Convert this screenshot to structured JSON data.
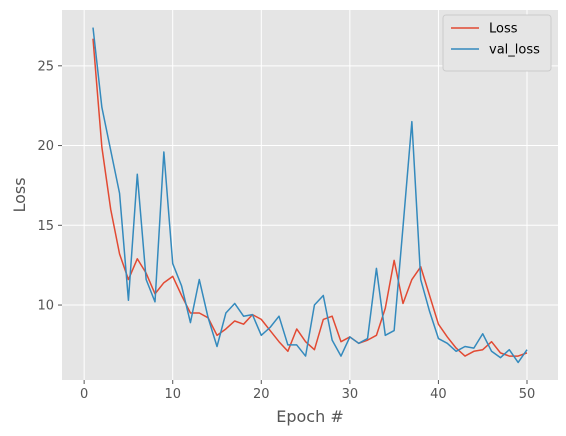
{
  "chart_data": {
    "type": "line",
    "title": "",
    "xlabel": "Epoch #",
    "ylabel": "Loss",
    "xlim": [
      -2.5,
      53.5
    ],
    "ylim": [
      5.3,
      28.5
    ],
    "xticks": [
      0,
      10,
      20,
      30,
      40,
      50
    ],
    "yticks": [
      10,
      15,
      20,
      25
    ],
    "grid": true,
    "legend_position": "top-right",
    "x": [
      1,
      2,
      3,
      4,
      5,
      6,
      7,
      8,
      9,
      10,
      11,
      12,
      13,
      14,
      15,
      16,
      17,
      18,
      19,
      20,
      21,
      22,
      23,
      24,
      25,
      26,
      27,
      28,
      29,
      30,
      31,
      32,
      33,
      34,
      35,
      36,
      37,
      38,
      39,
      40,
      41,
      42,
      43,
      44,
      45,
      46,
      47,
      48,
      49,
      50
    ],
    "series": [
      {
        "name": "Loss",
        "color": "#E24A33",
        "values": [
          26.7,
          19.9,
          16.0,
          13.2,
          11.6,
          12.9,
          12.0,
          10.7,
          11.4,
          11.8,
          10.6,
          9.5,
          9.5,
          9.2,
          8.1,
          8.5,
          9.0,
          8.8,
          9.4,
          9.1,
          8.4,
          7.7,
          7.1,
          8.5,
          7.7,
          7.2,
          9.1,
          9.3,
          7.7,
          8.0,
          7.6,
          7.8,
          8.1,
          9.8,
          12.8,
          10.1,
          11.6,
          12.4,
          10.6,
          8.8,
          8.0,
          7.3,
          6.8,
          7.1,
          7.2,
          7.7,
          7.0,
          6.8,
          6.8,
          7.0
        ]
      },
      {
        "name": "val_loss",
        "color": "#348ABD",
        "values": [
          27.4,
          22.4,
          19.7,
          17.0,
          10.3,
          18.2,
          11.6,
          10.2,
          19.6,
          12.6,
          11.2,
          8.9,
          11.6,
          9.2,
          7.4,
          9.5,
          10.1,
          9.3,
          9.4,
          8.1,
          8.6,
          9.3,
          7.5,
          7.5,
          6.8,
          10.0,
          10.6,
          7.8,
          6.8,
          8.0,
          7.6,
          7.9,
          12.3,
          8.1,
          8.4,
          14.9,
          21.5,
          11.6,
          9.6,
          7.9,
          7.6,
          7.1,
          7.4,
          7.3,
          8.2,
          7.1,
          6.7,
          7.2,
          6.4,
          7.2
        ]
      }
    ]
  }
}
